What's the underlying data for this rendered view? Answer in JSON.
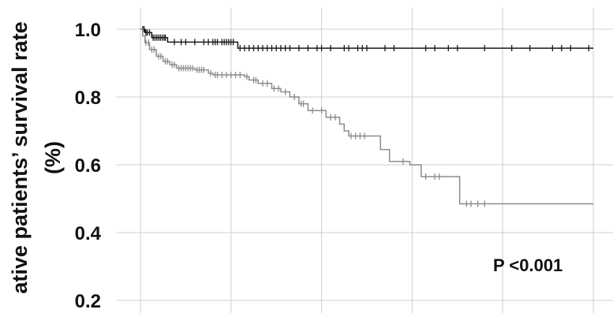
{
  "chart_data": {
    "type": "line",
    "title": "",
    "ylabel_line1": "ative patients’ survival rate",
    "ylabel_line2": "(%)",
    "xlabel": "",
    "ylim": [
      0.2,
      1.0
    ],
    "yticks": [
      0.2,
      0.4,
      0.6,
      0.8,
      1.0
    ],
    "ytick_labels": [
      "0.2",
      "0.4",
      "0.6",
      "0.8",
      "1.0"
    ],
    "xlim": [
      0,
      10
    ],
    "xgrid": [
      0,
      2,
      4,
      6,
      8,
      10
    ],
    "grid": true,
    "annotation": "P <0.001",
    "series": [
      {
        "color": "#1a1a1a",
        "step": [
          [
            0,
            1.0
          ],
          [
            0.1,
            0.99
          ],
          [
            0.25,
            0.975
          ],
          [
            0.6,
            0.962
          ],
          [
            2.1,
            0.962
          ],
          [
            2.15,
            0.944
          ],
          [
            10,
            0.944
          ]
        ],
        "censor": [
          0.05,
          0.08,
          0.12,
          0.15,
          0.2,
          0.28,
          0.32,
          0.36,
          0.4,
          0.44,
          0.48,
          0.52,
          0.55,
          0.75,
          0.9,
          1.0,
          1.2,
          1.4,
          1.5,
          1.6,
          1.65,
          1.7,
          1.8,
          1.85,
          1.9,
          1.95,
          2.0,
          2.05,
          2.2,
          2.3,
          2.4,
          2.5,
          2.6,
          2.7,
          2.8,
          2.9,
          3.0,
          3.1,
          3.2,
          3.3,
          3.5,
          3.7,
          3.9,
          4.0,
          4.2,
          4.5,
          4.6,
          4.8,
          4.9,
          5.0,
          5.4,
          5.6,
          6.3,
          6.5,
          6.8,
          7.0,
          7.6,
          8.2,
          8.6,
          9.1,
          9.3,
          9.5,
          9.9
        ]
      },
      {
        "color": "#8c8c8c",
        "step": [
          [
            0,
            1.0
          ],
          [
            0.05,
            0.98
          ],
          [
            0.1,
            0.96
          ],
          [
            0.2,
            0.94
          ],
          [
            0.35,
            0.92
          ],
          [
            0.5,
            0.905
          ],
          [
            0.65,
            0.895
          ],
          [
            0.8,
            0.885
          ],
          [
            1.2,
            0.88
          ],
          [
            1.5,
            0.87
          ],
          [
            1.6,
            0.865
          ],
          [
            2.3,
            0.86
          ],
          [
            2.4,
            0.85
          ],
          [
            2.6,
            0.84
          ],
          [
            2.9,
            0.825
          ],
          [
            3.1,
            0.815
          ],
          [
            3.3,
            0.8
          ],
          [
            3.5,
            0.78
          ],
          [
            3.7,
            0.76
          ],
          [
            4.1,
            0.74
          ],
          [
            4.4,
            0.72
          ],
          [
            4.5,
            0.7
          ],
          [
            4.6,
            0.685
          ],
          [
            5.0,
            0.685
          ],
          [
            5.3,
            0.645
          ],
          [
            5.5,
            0.61
          ],
          [
            5.9,
            0.61
          ],
          [
            5.95,
            0.6
          ],
          [
            6.2,
            0.565
          ],
          [
            7.0,
            0.565
          ],
          [
            7.05,
            0.485
          ],
          [
            10,
            0.485
          ]
        ],
        "censor": [
          0.12,
          0.18,
          0.25,
          0.3,
          0.4,
          0.45,
          0.55,
          0.6,
          0.7,
          0.75,
          0.85,
          0.9,
          0.95,
          1.0,
          1.05,
          1.1,
          1.15,
          1.25,
          1.3,
          1.35,
          1.4,
          1.55,
          1.65,
          1.7,
          1.8,
          1.9,
          2.0,
          2.1,
          2.2,
          2.35,
          2.5,
          2.55,
          2.7,
          2.8,
          2.95,
          3.05,
          3.2,
          3.4,
          3.55,
          3.6,
          3.8,
          4.0,
          4.2,
          4.3,
          4.65,
          4.75,
          4.85,
          4.95,
          5.8,
          6.3,
          6.5,
          6.6,
          7.2,
          7.3,
          7.45,
          7.6
        ]
      }
    ]
  }
}
